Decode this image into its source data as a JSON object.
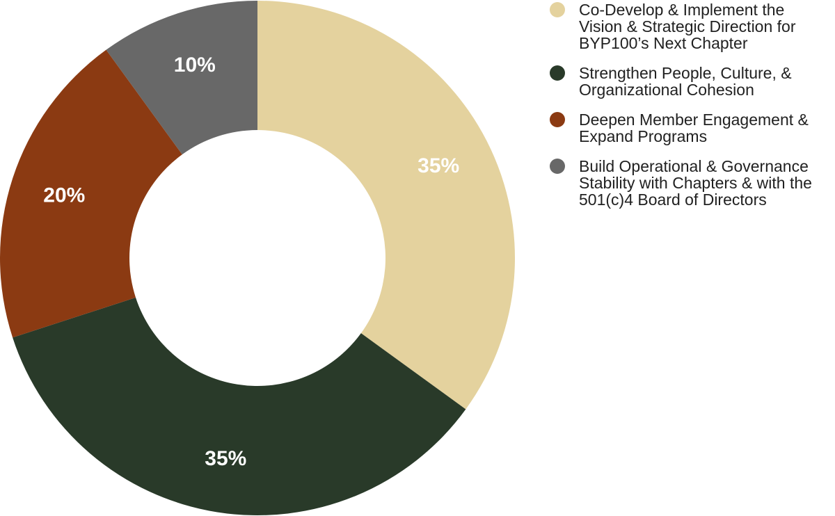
{
  "chart_data": {
    "type": "pie",
    "subtype": "donut",
    "title": "",
    "start_angle_deg": 0,
    "direction": "clockwise",
    "inner_radius_ratio": 0.497,
    "legend_position": "right",
    "value_label_color": "#ffffff",
    "background_color": "#ffffff",
    "slices": [
      {
        "label": "Co-Develop & Implement the Vision & Strategic Direction for BYP100’s Next Chapter",
        "value": 35,
        "display": "35%",
        "color": "#E4D29E"
      },
      {
        "label": "Strengthen People, Culture, & Organizational Cohesion",
        "value": 35,
        "display": "35%",
        "color": "#293A29"
      },
      {
        "label": "Deepen Member Engagement & Expand Programs",
        "value": 20,
        "display": "20%",
        "color": "#8B3A12"
      },
      {
        "label": "Build Operational & Governance Stability with Chapters & with the 501(c)4 Board of Directors",
        "value": 10,
        "display": "10%",
        "color": "#686868"
      }
    ]
  }
}
